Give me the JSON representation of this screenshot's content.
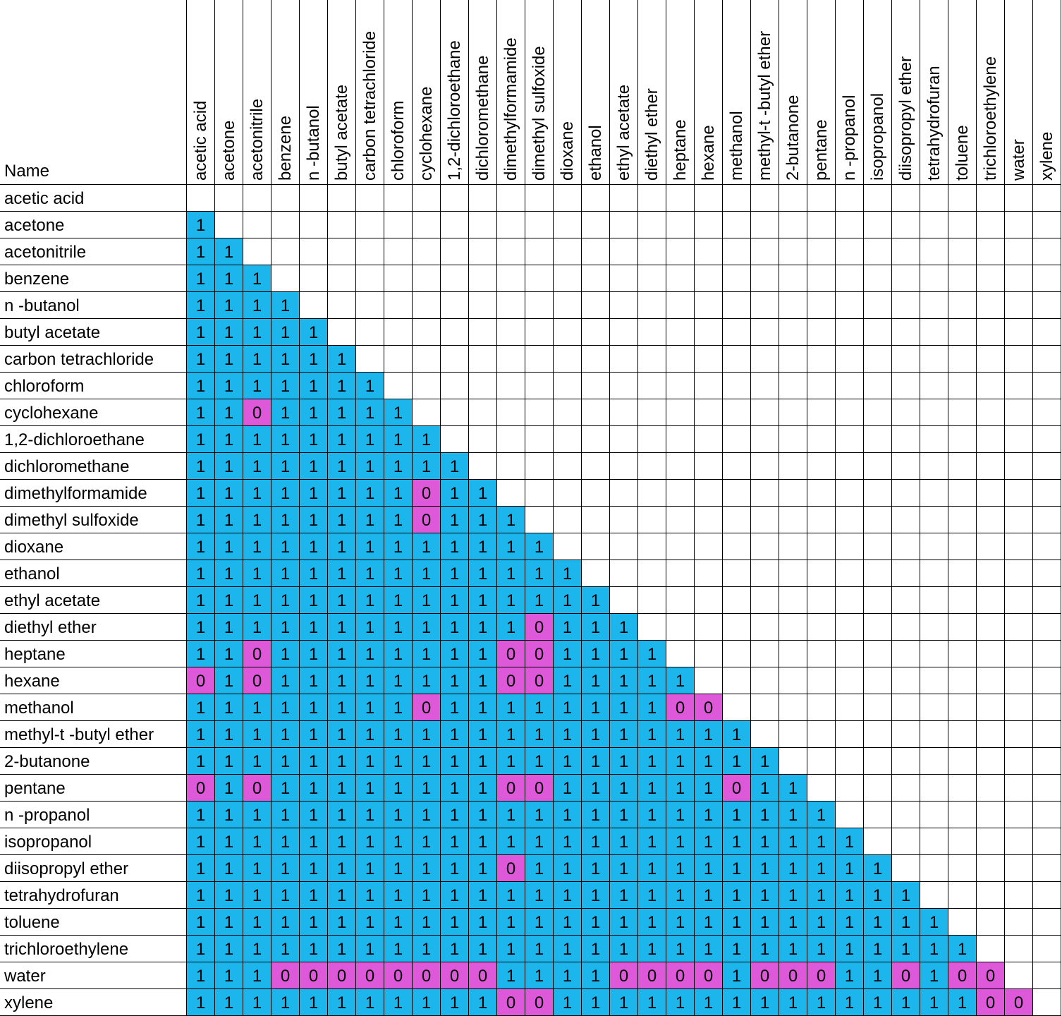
{
  "chart_data": {
    "type": "table",
    "corner_label": "Name",
    "columns": [
      "acetic acid",
      "acetone",
      "acetonitrile",
      "benzene",
      "n -butanol",
      "butyl acetate",
      "carbon tetrachloride",
      "chloroform",
      "cyclohexane",
      "1,2-dichloroethane",
      "dichloromethane",
      "dimethylformamide",
      "dimethyl sulfoxide",
      "dioxane",
      "ethanol",
      "ethyl acetate",
      "diethyl ether",
      "heptane",
      "hexane",
      "methanol",
      "methyl-t -butyl ether",
      "2-butanone",
      "pentane",
      "n -propanol",
      "isopropanol",
      "diisopropyl ether",
      "tetrahydrofuran",
      "toluene",
      "trichloroethylene",
      "water",
      "xylene"
    ],
    "rows": [
      {
        "name": "acetic acid",
        "values": []
      },
      {
        "name": "acetone",
        "values": [
          1
        ]
      },
      {
        "name": "acetonitrile",
        "values": [
          1,
          1
        ]
      },
      {
        "name": "benzene",
        "values": [
          1,
          1,
          1
        ]
      },
      {
        "name": "n -butanol",
        "values": [
          1,
          1,
          1,
          1
        ]
      },
      {
        "name": "butyl acetate",
        "values": [
          1,
          1,
          1,
          1,
          1
        ]
      },
      {
        "name": "carbon tetrachloride",
        "values": [
          1,
          1,
          1,
          1,
          1,
          1
        ]
      },
      {
        "name": "chloroform",
        "values": [
          1,
          1,
          1,
          1,
          1,
          1,
          1
        ]
      },
      {
        "name": "cyclohexane",
        "values": [
          1,
          1,
          0,
          1,
          1,
          1,
          1,
          1
        ]
      },
      {
        "name": "1,2-dichloroethane",
        "values": [
          1,
          1,
          1,
          1,
          1,
          1,
          1,
          1,
          1
        ]
      },
      {
        "name": "dichloromethane",
        "values": [
          1,
          1,
          1,
          1,
          1,
          1,
          1,
          1,
          1,
          1
        ]
      },
      {
        "name": "dimethylformamide",
        "values": [
          1,
          1,
          1,
          1,
          1,
          1,
          1,
          1,
          0,
          1,
          1
        ]
      },
      {
        "name": "dimethyl sulfoxide",
        "values": [
          1,
          1,
          1,
          1,
          1,
          1,
          1,
          1,
          0,
          1,
          1,
          1
        ]
      },
      {
        "name": "dioxane",
        "values": [
          1,
          1,
          1,
          1,
          1,
          1,
          1,
          1,
          1,
          1,
          1,
          1,
          1
        ]
      },
      {
        "name": "ethanol",
        "values": [
          1,
          1,
          1,
          1,
          1,
          1,
          1,
          1,
          1,
          1,
          1,
          1,
          1,
          1
        ]
      },
      {
        "name": "ethyl acetate",
        "values": [
          1,
          1,
          1,
          1,
          1,
          1,
          1,
          1,
          1,
          1,
          1,
          1,
          1,
          1,
          1
        ]
      },
      {
        "name": "diethyl ether",
        "values": [
          1,
          1,
          1,
          1,
          1,
          1,
          1,
          1,
          1,
          1,
          1,
          1,
          0,
          1,
          1,
          1
        ]
      },
      {
        "name": "heptane",
        "values": [
          1,
          1,
          0,
          1,
          1,
          1,
          1,
          1,
          1,
          1,
          1,
          0,
          0,
          1,
          1,
          1,
          1
        ]
      },
      {
        "name": "hexane",
        "values": [
          0,
          1,
          0,
          1,
          1,
          1,
          1,
          1,
          1,
          1,
          1,
          0,
          0,
          1,
          1,
          1,
          1,
          1
        ]
      },
      {
        "name": "methanol",
        "values": [
          1,
          1,
          1,
          1,
          1,
          1,
          1,
          1,
          0,
          1,
          1,
          1,
          1,
          1,
          1,
          1,
          1,
          0,
          0
        ]
      },
      {
        "name": "methyl-t -butyl ether",
        "values": [
          1,
          1,
          1,
          1,
          1,
          1,
          1,
          1,
          1,
          1,
          1,
          1,
          1,
          1,
          1,
          1,
          1,
          1,
          1,
          1
        ]
      },
      {
        "name": "2-butanone",
        "values": [
          1,
          1,
          1,
          1,
          1,
          1,
          1,
          1,
          1,
          1,
          1,
          1,
          1,
          1,
          1,
          1,
          1,
          1,
          1,
          1,
          1
        ]
      },
      {
        "name": "pentane",
        "values": [
          0,
          1,
          0,
          1,
          1,
          1,
          1,
          1,
          1,
          1,
          1,
          0,
          0,
          1,
          1,
          1,
          1,
          1,
          1,
          0,
          1,
          1
        ]
      },
      {
        "name": "n -propanol",
        "values": [
          1,
          1,
          1,
          1,
          1,
          1,
          1,
          1,
          1,
          1,
          1,
          1,
          1,
          1,
          1,
          1,
          1,
          1,
          1,
          1,
          1,
          1,
          1
        ]
      },
      {
        "name": "isopropanol",
        "values": [
          1,
          1,
          1,
          1,
          1,
          1,
          1,
          1,
          1,
          1,
          1,
          1,
          1,
          1,
          1,
          1,
          1,
          1,
          1,
          1,
          1,
          1,
          1,
          1
        ]
      },
      {
        "name": "diisopropyl ether",
        "values": [
          1,
          1,
          1,
          1,
          1,
          1,
          1,
          1,
          1,
          1,
          1,
          0,
          1,
          1,
          1,
          1,
          1,
          1,
          1,
          1,
          1,
          1,
          1,
          1,
          1
        ]
      },
      {
        "name": "tetrahydrofuran",
        "values": [
          1,
          1,
          1,
          1,
          1,
          1,
          1,
          1,
          1,
          1,
          1,
          1,
          1,
          1,
          1,
          1,
          1,
          1,
          1,
          1,
          1,
          1,
          1,
          1,
          1,
          1
        ]
      },
      {
        "name": "toluene",
        "values": [
          1,
          1,
          1,
          1,
          1,
          1,
          1,
          1,
          1,
          1,
          1,
          1,
          1,
          1,
          1,
          1,
          1,
          1,
          1,
          1,
          1,
          1,
          1,
          1,
          1,
          1,
          1
        ]
      },
      {
        "name": "trichloroethylene",
        "values": [
          1,
          1,
          1,
          1,
          1,
          1,
          1,
          1,
          1,
          1,
          1,
          1,
          1,
          1,
          1,
          1,
          1,
          1,
          1,
          1,
          1,
          1,
          1,
          1,
          1,
          1,
          1,
          1
        ]
      },
      {
        "name": "water",
        "values": [
          1,
          1,
          1,
          0,
          0,
          0,
          0,
          0,
          0,
          0,
          0,
          1,
          1,
          1,
          1,
          0,
          0,
          0,
          0,
          1,
          0,
          0,
          0,
          1,
          1,
          0,
          1,
          0,
          0
        ]
      },
      {
        "name": "xylene",
        "values": [
          1,
          1,
          1,
          1,
          1,
          1,
          1,
          1,
          1,
          1,
          1,
          0,
          0,
          1,
          1,
          1,
          1,
          1,
          1,
          1,
          1,
          1,
          1,
          1,
          1,
          1,
          1,
          1,
          0,
          0
        ]
      }
    ],
    "colors": {
      "miscible": "#1CB5EC",
      "immiscible": "#DE58DA",
      "empty": "#FFFFFF",
      "border": "#000000"
    }
  }
}
